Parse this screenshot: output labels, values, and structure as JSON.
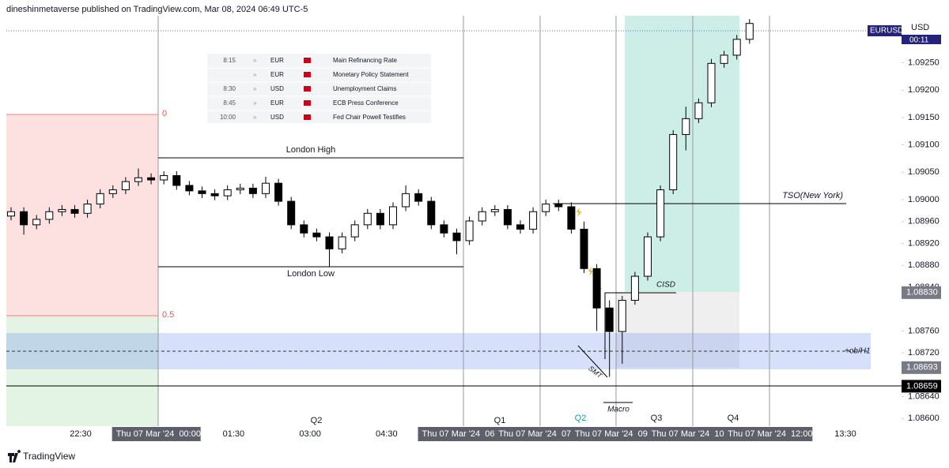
{
  "header": {
    "text": "dineshinmetaverse published on TradingView.com, Mar 08, 2024 06:49 UTC-5"
  },
  "chart_data": {
    "type": "candlestick",
    "open": [
      1.0897,
      1.08978,
      1.08954,
      1.08964,
      1.08978,
      1.08982,
      1.08975,
      1.08992,
      1.09011,
      1.09018,
      1.09033,
      1.0904,
      1.09036,
      1.09044,
      1.09026,
      1.09016,
      1.09011,
      1.09007,
      1.09018,
      1.09021,
      1.09011,
      1.0903,
      1.08997,
      1.08954,
      1.08939,
      1.08932,
      1.0891,
      1.08932,
      1.08954,
      1.08975,
      1.08954,
      1.08987,
      1.09011,
      1.08997,
      1.08954,
      1.08939,
      1.08925,
      1.08961,
      1.08978,
      1.08982,
      1.08954,
      1.08946,
      1.08978,
      1.08992,
      1.08987,
      1.08946,
      1.08874,
      1.08802,
      1.08759,
      1.08816,
      1.0886,
      1.08932,
      1.09018,
      1.09119,
      1.09148,
      1.09177,
      1.09249,
      1.09264,
      1.09293
    ],
    "high": [
      1.08986,
      1.08986,
      1.08972,
      1.08986,
      1.0899,
      1.0899,
      1.09,
      1.09019,
      1.09026,
      1.09041,
      1.09057,
      1.09048,
      1.09052,
      1.09052,
      1.09034,
      1.09024,
      1.09019,
      1.09026,
      1.09029,
      1.09029,
      1.09042,
      1.09038,
      1.09005,
      1.08962,
      1.08947,
      1.0894,
      1.0894,
      1.08962,
      1.08983,
      1.08983,
      1.08995,
      1.09026,
      1.09019,
      1.09005,
      1.08962,
      1.08947,
      1.08969,
      1.08986,
      1.0899,
      1.0899,
      1.08962,
      1.08986,
      1.09,
      1.09,
      1.08995,
      1.0896,
      1.08882,
      1.08816,
      1.08824,
      1.08868,
      1.0894,
      1.09026,
      1.09127,
      1.0917,
      1.09185,
      1.09257,
      1.09272,
      1.09301,
      1.0933
    ],
    "low": [
      1.08962,
      1.08936,
      1.08946,
      1.08956,
      1.0897,
      1.08967,
      1.08967,
      1.08984,
      1.09003,
      1.0901,
      1.09025,
      1.09028,
      1.09028,
      1.09018,
      1.09008,
      1.09003,
      1.08999,
      1.08999,
      1.0901,
      1.09003,
      1.09003,
      1.08989,
      1.08946,
      1.08931,
      1.08924,
      1.08877,
      1.08902,
      1.08924,
      1.08946,
      1.08946,
      1.08946,
      1.08979,
      1.08989,
      1.08946,
      1.08931,
      1.089,
      1.08917,
      1.08953,
      1.0897,
      1.08946,
      1.08938,
      1.08938,
      1.0897,
      1.08979,
      1.08938,
      1.08866,
      1.0876,
      1.08676,
      1.087,
      1.08808,
      1.08852,
      1.08924,
      1.0901,
      1.0909,
      1.0914,
      1.09169,
      1.09241,
      1.09256,
      1.09285
    ],
    "close": [
      1.08978,
      1.08954,
      1.08964,
      1.08978,
      1.08982,
      1.08975,
      1.08992,
      1.09011,
      1.09018,
      1.09033,
      1.0904,
      1.09036,
      1.09044,
      1.09026,
      1.09016,
      1.09011,
      1.09007,
      1.09018,
      1.09021,
      1.09011,
      1.0903,
      1.08997,
      1.08954,
      1.08939,
      1.08932,
      1.0891,
      1.08932,
      1.08954,
      1.08975,
      1.08954,
      1.08987,
      1.09011,
      1.08997,
      1.08954,
      1.08939,
      1.08925,
      1.08961,
      1.08978,
      1.08982,
      1.08954,
      1.08946,
      1.08978,
      1.08992,
      1.08987,
      1.08946,
      1.08874,
      1.08802,
      1.08759,
      1.08816,
      1.0886,
      1.08932,
      1.09018,
      1.09119,
      1.09148,
      1.09177,
      1.09249,
      1.09264,
      1.09293,
      1.09322
    ],
    "up_color": "#ffffff",
    "down_color": "#000000",
    "ylim": [
      1.08586,
      1.09336
    ],
    "yticks": [
      {
        "value": 1.0925,
        "label": "1.09250"
      },
      {
        "value": 1.092,
        "label": "1.09200"
      },
      {
        "value": 1.0915,
        "label": "1.09150"
      },
      {
        "value": 1.091,
        "label": "1.09100"
      },
      {
        "value": 1.0905,
        "label": "1.09050"
      },
      {
        "value": 1.09,
        "label": "1.09000"
      },
      {
        "value": 1.0896,
        "label": "1.08960"
      },
      {
        "value": 1.0892,
        "label": "1.08920"
      },
      {
        "value": 1.0888,
        "label": "1.08880"
      },
      {
        "value": 1.0884,
        "label": "1.08840"
      },
      {
        "value": 1.0876,
        "label": "1.08760"
      },
      {
        "value": 1.0872,
        "label": "1.08720"
      },
      {
        "value": 1.0864,
        "label": "1.08640"
      },
      {
        "value": 1.086,
        "label": "1.08600"
      }
    ],
    "x_labels": [
      "22:30",
      "Thu 07 Mar '24  00:00",
      "01:30",
      "03:00",
      "04:30",
      "Thu 07 Mar '24  06:0",
      "Thu 07 Mar '24  07:",
      "Thu 07 Mar '24  09:(",
      "Thu 07 Mar '24  10:",
      "Thu 07 Mar '24  12:00",
      "13:30"
    ],
    "price_tags": [
      {
        "value": 1.0883,
        "label": "1.08830",
        "color": "#787b86"
      },
      {
        "value": 1.08693,
        "label": "1.08693",
        "color": "#787b86"
      },
      {
        "value": 1.08659,
        "label": "1.08659",
        "color": "#000000"
      }
    ],
    "symbol": "EURUSD",
    "currency": "USD",
    "countdown": "00:11",
    "annotations": [
      "London High",
      "London Low",
      "TSO(New York)",
      "CISD",
      "+ob/H1",
      "SMT",
      "Macro",
      "0",
      "0.5",
      "Q2",
      "Q1",
      "Q2",
      "Q3",
      "Q4"
    ]
  },
  "events": [
    {
      "time": "8:15",
      "currency": "EUR",
      "event": "Main Refinancing Rate"
    },
    {
      "currency": "EUR",
      "event": "Monetary Policy Statement"
    },
    {
      "time": "8:30",
      "currency": "USD",
      "event": "Unemployment Claims"
    },
    {
      "time": "8:45",
      "currency": "EUR",
      "event": "ECB Press Conference"
    },
    {
      "time": "10:00",
      "currency": "USD",
      "event": "Fed Chair Powell Testifies"
    }
  ],
  "footer": {
    "brand": "TradingView"
  }
}
